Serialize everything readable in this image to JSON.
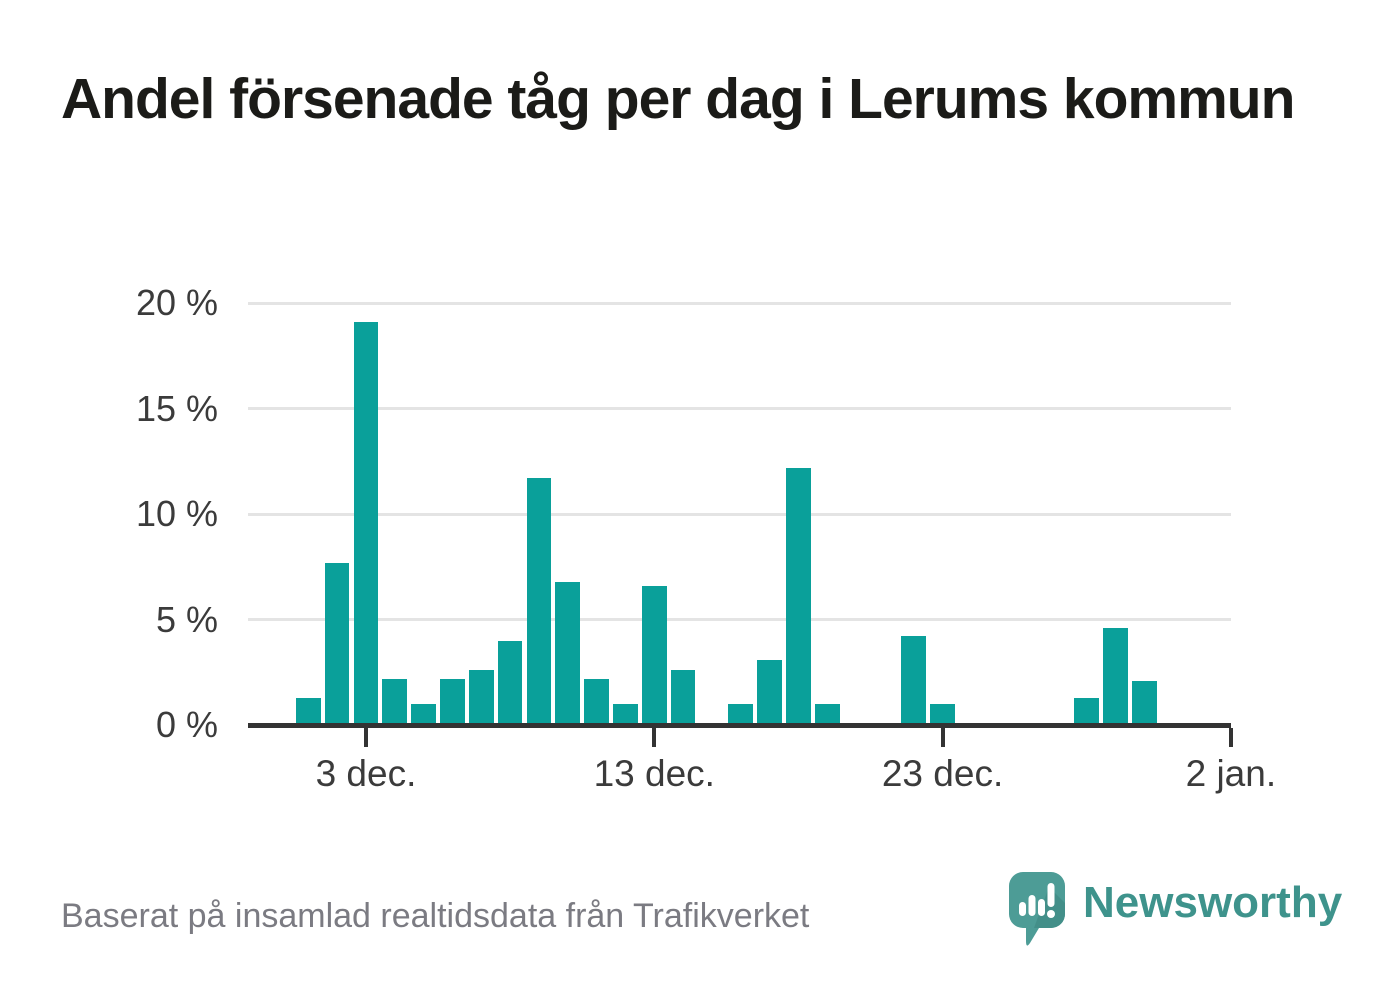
{
  "title": "Andel försenade tåg per dag i Lerums kommun",
  "footer": {
    "source_note": "Baserat på insamlad realtidsdata från Trafikverket",
    "brand": "Newsworthy"
  },
  "colors": {
    "bar": "#0aa09a",
    "axis": "#333333",
    "gridline": "#e4e4e4",
    "axis_label": "#3b3b3b",
    "title_text": "#1b1b18",
    "muted_text": "#7b7b82",
    "logo_bubble": "#4d9c96",
    "logo_bubble_shade": "#438f89",
    "brand_text": "#3e938c"
  },
  "chart_data": {
    "type": "bar",
    "title": "Andel försenade tåg per dag i Lerums kommun",
    "unit": "%",
    "categories": [
      "1 dec",
      "2 dec",
      "3 dec",
      "4 dec",
      "5 dec",
      "6 dec",
      "7 dec",
      "8 dec",
      "9 dec",
      "10 dec",
      "11 dec",
      "12 dec",
      "13 dec",
      "14 dec",
      "15 dec",
      "16 dec",
      "17 dec",
      "18 dec",
      "19 dec",
      "20 dec",
      "21 dec",
      "22 dec",
      "23 dec",
      "24 dec",
      "25 dec",
      "26 dec",
      "27 dec",
      "28 dec",
      "29 dec",
      "30 dec",
      "31 dec",
      "1 jan",
      "2 jan"
    ],
    "values": [
      1.3,
      7.7,
      19.1,
      2.2,
      1.0,
      2.2,
      2.6,
      4.0,
      11.7,
      6.8,
      2.2,
      1.0,
      6.6,
      2.6,
      0,
      1.0,
      3.1,
      12.2,
      1.0,
      0,
      0,
      4.2,
      1.0,
      0,
      0,
      0,
      0,
      1.3,
      4.6,
      2.1,
      0,
      0,
      0
    ],
    "ylim": [
      0,
      20
    ],
    "yticks": [
      0,
      5,
      10,
      15,
      20
    ],
    "ytick_labels": [
      "0 %",
      "5 %",
      "10 %",
      "15 %",
      "20 %"
    ],
    "xticks": [
      {
        "index": 2,
        "label": "3 dec."
      },
      {
        "index": 12,
        "label": "13 dec."
      },
      {
        "index": 22,
        "label": "23 dec."
      },
      {
        "index": 32,
        "label": "2 jan."
      }
    ],
    "grid": "horizontal",
    "legend": "none"
  }
}
